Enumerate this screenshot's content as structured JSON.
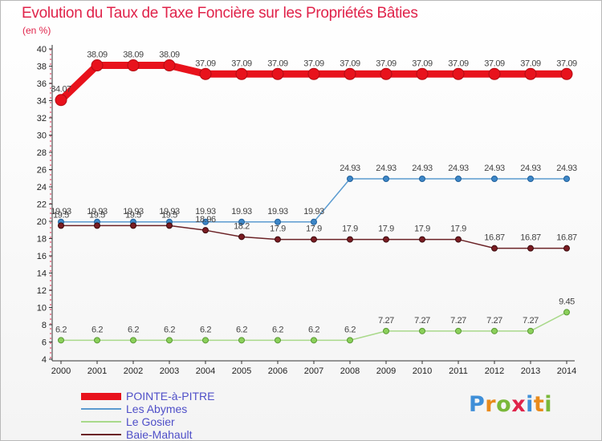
{
  "title": "Evolution du Taux de Taxe Foncière sur les Propriétés Bâties",
  "unit_label": "(en %)",
  "brand": {
    "text": "Proxiti",
    "letters": [
      "P",
      "r",
      "o",
      "x",
      "i",
      "t",
      "i"
    ]
  },
  "colors": {
    "brand_letters": [
      "#3f8fd8",
      "#e98b1c",
      "#7ab83a",
      "#e0234a",
      "#3f8fd8",
      "#e98b1c",
      "#7ab83a"
    ],
    "title": "#e0234a",
    "legend_text": "#4f4fc8"
  },
  "chart_data": {
    "type": "line",
    "title": "Evolution du Taux de Taxe Foncière sur les Propriétés Bâties",
    "ylabel": "(en %)",
    "xlabel": "",
    "x": [
      "2000",
      "2001",
      "2002",
      "2003",
      "2004",
      "2005",
      "2006",
      "2007",
      "2008",
      "2009",
      "2010",
      "2011",
      "2012",
      "2013",
      "2014"
    ],
    "ylim": [
      4,
      40
    ],
    "yticks": [
      "4",
      "6",
      "8",
      "10",
      "12",
      "14",
      "16",
      "18",
      "20",
      "22",
      "24",
      "26",
      "28",
      "30",
      "32",
      "34",
      "36",
      "38",
      "40"
    ],
    "grid": false,
    "legend": "bottom-left",
    "series": [
      {
        "name": "POINTE-à-PITRE",
        "color": "#e8121c",
        "values": [
          34.07,
          38.09,
          38.09,
          38.09,
          37.09,
          37.09,
          37.09,
          37.09,
          37.09,
          37.09,
          37.09,
          37.09,
          37.09,
          37.09,
          37.09
        ],
        "labels": [
          "34.07",
          "38.09",
          "38.09",
          "38.09",
          "37.09",
          "37.09",
          "37.09",
          "37.09",
          "37.09",
          "37.09",
          "37.09",
          "37.09",
          "37.09",
          "37.09",
          "37.09"
        ]
      },
      {
        "name": "Les Abymes",
        "color": "#5b9bd0",
        "values": [
          19.93,
          19.93,
          19.93,
          19.93,
          19.93,
          19.93,
          19.93,
          19.93,
          24.93,
          24.93,
          24.93,
          24.93,
          24.93,
          24.93,
          24.93
        ],
        "labels": [
          "19.93",
          "19.93",
          "19.93",
          "19.93",
          "19.93",
          "19.93",
          "19.93",
          "19.93",
          "24.93",
          "24.93",
          "24.93",
          "24.93",
          "24.93",
          "24.93",
          "24.93"
        ]
      },
      {
        "name": "Le Gosier",
        "color": "#a9d98a",
        "values": [
          6.2,
          6.2,
          6.2,
          6.2,
          6.2,
          6.2,
          6.2,
          6.2,
          6.2,
          7.27,
          7.27,
          7.27,
          7.27,
          7.27,
          9.45
        ],
        "labels": [
          "6.2",
          "6.2",
          "6.2",
          "6.2",
          "6.2",
          "6.2",
          "6.2",
          "6.2",
          "6.2",
          "7.27",
          "7.27",
          "7.27",
          "7.27",
          "7.27",
          "9.45"
        ]
      },
      {
        "name": "Baie-Mahault",
        "color": "#6b2226",
        "values": [
          19.5,
          19.5,
          19.5,
          19.5,
          18.96,
          18.2,
          17.9,
          17.9,
          17.9,
          17.9,
          17.9,
          17.9,
          16.87,
          16.87,
          16.87
        ],
        "labels": [
          "19.5",
          "19.5",
          "19.5",
          "19.5",
          "18.96",
          "18.2",
          "17.9",
          "17.9",
          "17.9",
          "17.9",
          "17.9",
          "17.9",
          "16.87",
          "16.87",
          "16.87"
        ]
      }
    ]
  }
}
